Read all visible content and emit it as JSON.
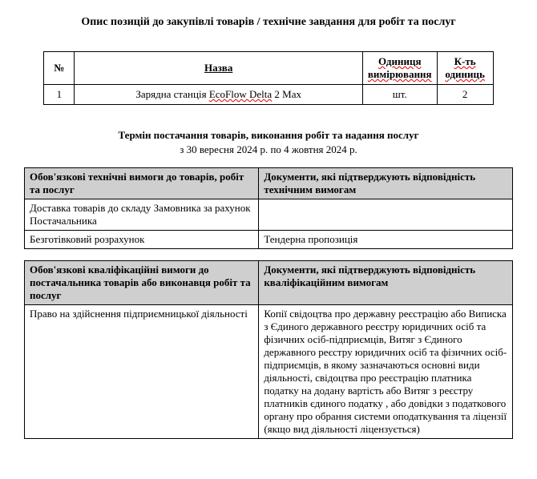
{
  "title_main": "Опис позицій до закупівлі товарів / технічне завдання для робіт та послуг",
  "items_table": {
    "headers": {
      "num": "№",
      "name": "Назва",
      "unit_line1": "Одиниця",
      "unit_line2": "вимірювання",
      "qty_line1": "К-ть",
      "qty_line2": "одиниць"
    },
    "rows": [
      {
        "num": "1",
        "name_pre": "Зарядна станція ",
        "name_wave": "EcoFlow Delta",
        "name_post": " 2 Max",
        "unit": "шт.",
        "qty": "2"
      }
    ]
  },
  "delivery": {
    "title": "Термін постачання товарів, виконання робіт та надання послуг",
    "dates": "з 30 вересня 2024 р. по 4 жовтня 2024 р."
  },
  "tech_req": {
    "header_left": "Обов'язкові технічні вимоги до товарів, робіт та послуг",
    "header_right": "Документи, які підтверджують відповідність технічним вимогам",
    "rows": [
      {
        "left": "Доставка товарів до складу Замовника за рахунок Постачальника",
        "right": ""
      },
      {
        "left": "Безготівковий розрахунок",
        "right": "Тендерна пропозиція"
      }
    ]
  },
  "qual_req": {
    "header_left": "Обов'язкові кваліфікаційні вимоги до постачальника товарів або виконавця робіт та послуг",
    "header_right": "Документи, які підтверджують відповідність кваліфікаційним вимогам",
    "rows": [
      {
        "left": "Право на здійснення підприємницької діяльності",
        "right": "Копії свідоцтва про державну реєстрацію або Виписка з Єдиного державного реєстру юридичних осіб та фізичних осіб-підприємців, Витяг з Єдиного державного реєстру юридичних осіб та фізичних осіб-підприємців, в якому зазначаються основні види діяльності, свідоцтва про реєстрацію платника податку на додану вартість або Витяг з реєстру платників єдиного податку , або довідки з податкового органу про обрання системи оподаткування  та ліцензії (якщо вид діяльності ліцензується)"
      }
    ]
  }
}
